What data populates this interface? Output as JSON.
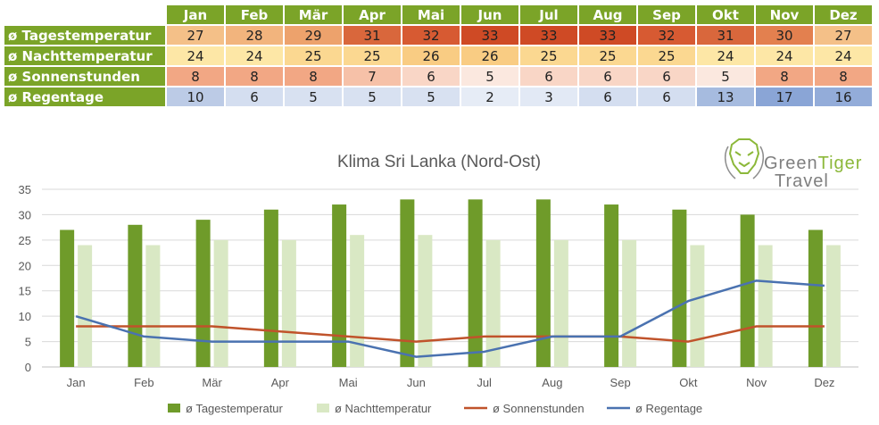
{
  "table": {
    "months": [
      "Jan",
      "Feb",
      "Mär",
      "Apr",
      "Mai",
      "Jun",
      "Jul",
      "Aug",
      "Sep",
      "Okt",
      "Nov",
      "Dez"
    ],
    "rows": [
      {
        "label": "ø Tagestemperatur",
        "values": [
          27,
          28,
          29,
          31,
          32,
          33,
          33,
          33,
          32,
          31,
          30,
          27
        ],
        "colors": [
          "#f4c088",
          "#f2b47d",
          "#eda26c",
          "#d9673c",
          "#d75a32",
          "#cf4a25",
          "#cf4a25",
          "#cf4a25",
          "#d75a32",
          "#d9673c",
          "#e3804f",
          "#f4c088"
        ]
      },
      {
        "label": "ø Nachttemperatur",
        "values": [
          24,
          24,
          25,
          25,
          26,
          26,
          25,
          25,
          25,
          24,
          24,
          24
        ],
        "colors": [
          "#fde7a6",
          "#fde7a6",
          "#fbd891",
          "#fbd891",
          "#f9cc83",
          "#f9cc83",
          "#fbd891",
          "#fbd891",
          "#fbd891",
          "#fde7a6",
          "#fde7a6",
          "#fde7a6"
        ]
      },
      {
        "label": "ø Sonnenstunden",
        "values": [
          8,
          8,
          8,
          7,
          6,
          5,
          6,
          6,
          6,
          5,
          8,
          8
        ],
        "colors": [
          "#f2a784",
          "#f2a784",
          "#f2a784",
          "#f6c1a8",
          "#f9d6c6",
          "#fbe8df",
          "#f9d6c6",
          "#f9d6c6",
          "#f9d6c6",
          "#fbe8df",
          "#f2a784",
          "#f2a784"
        ]
      },
      {
        "label": "ø Regentage",
        "values": [
          10,
          6,
          5,
          5,
          5,
          2,
          3,
          6,
          6,
          13,
          17,
          16
        ],
        "colors": [
          "#bccbe6",
          "#d4def0",
          "#d8e1f1",
          "#d8e1f1",
          "#d8e1f1",
          "#e6ecf6",
          "#e2e9f5",
          "#d4def0",
          "#d4def0",
          "#a6bbdf",
          "#8aa5d6",
          "#93acd9"
        ]
      }
    ]
  },
  "logo": {
    "line1": "Green",
    "line1b": "Tiger",
    "line2": "Travel"
  },
  "chart_data": {
    "type": "bar",
    "title": "Klima Sri Lanka (Nord-Ost)",
    "categories": [
      "Jan",
      "Feb",
      "Mär",
      "Apr",
      "Mai",
      "Jun",
      "Jul",
      "Aug",
      "Sep",
      "Okt",
      "Nov",
      "Dez"
    ],
    "ylim": [
      0,
      35
    ],
    "yticks": [
      "0",
      "5",
      "10",
      "15",
      "20",
      "25",
      "30",
      "35"
    ],
    "grid": true,
    "legend": "bottom",
    "series": [
      {
        "name": "ø Tagestemperatur",
        "kind": "bar",
        "color": "#6f9b2a",
        "values": [
          27,
          28,
          29,
          31,
          32,
          33,
          33,
          33,
          32,
          31,
          30,
          27
        ]
      },
      {
        "name": "ø Nachttemperatur",
        "kind": "bar",
        "color": "#d9e8c4",
        "values": [
          24,
          24,
          25,
          25,
          26,
          26,
          25,
          25,
          25,
          24,
          24,
          24
        ]
      },
      {
        "name": "ø Sonnenstunden",
        "kind": "line",
        "color": "#c0532b",
        "values": [
          8,
          8,
          8,
          7,
          6,
          5,
          6,
          6,
          6,
          5,
          8,
          8
        ]
      },
      {
        "name": "ø Regentage",
        "kind": "line",
        "color": "#4a72b0",
        "values": [
          10,
          6,
          5,
          5,
          5,
          2,
          3,
          6,
          6,
          13,
          17,
          16
        ]
      }
    ]
  }
}
